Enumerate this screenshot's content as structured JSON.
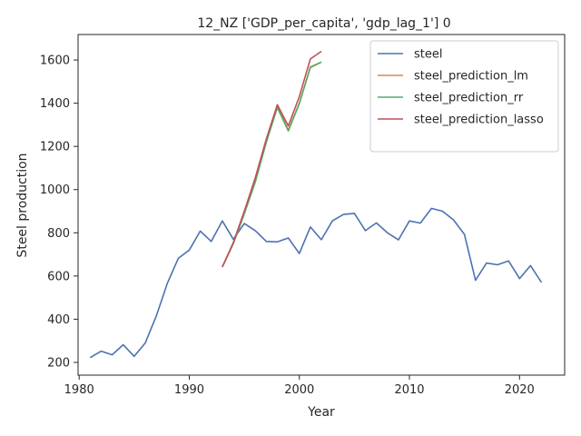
{
  "chart_data": {
    "type": "line",
    "title": "12_NZ ['GDP_per_capita', 'gdp_lag_1'] 0",
    "xlabel": "Year",
    "ylabel": "Steel production",
    "xlim": [
      1979.9,
      2024.1
    ],
    "ylim": [
      141,
      1718
    ],
    "xticks": [
      1980,
      1990,
      2000,
      2010,
      2020
    ],
    "yticks": [
      200,
      400,
      600,
      800,
      1000,
      1200,
      1400,
      1600
    ],
    "legend_position": "top-right",
    "grid": false,
    "series": [
      {
        "name": "steel",
        "color": "#4c72b0",
        "x": [
          1981,
          1982,
          1983,
          1984,
          1985,
          1986,
          1987,
          1988,
          1989,
          1990,
          1991,
          1992,
          1993,
          1994,
          1995,
          1996,
          1997,
          1998,
          1999,
          2000,
          2001,
          2002,
          2003,
          2004,
          2005,
          2006,
          2007,
          2008,
          2009,
          2010,
          2011,
          2012,
          2013,
          2014,
          2015,
          2016,
          2017,
          2018,
          2019,
          2020,
          2021,
          2022
        ],
        "y": [
          222,
          252,
          235,
          282,
          228,
          290,
          414,
          565,
          682,
          720,
          808,
          760,
          855,
          770,
          843,
          810,
          760,
          758,
          776,
          704,
          827,
          768,
          855,
          885,
          890,
          810,
          846,
          800,
          767,
          855,
          845,
          913,
          900,
          860,
          793,
          580,
          660,
          652,
          670,
          588,
          648,
          570
        ]
      },
      {
        "name": "steel_prediction_lm",
        "color": "#dd8452",
        "x": [
          1993,
          1994,
          1995,
          1996,
          1997,
          1998,
          1999,
          2000,
          2001,
          2002
        ],
        "y": [
          642,
          750,
          890,
          1040,
          1225,
          1385,
          1275,
          1400,
          1565,
          1590
        ]
      },
      {
        "name": "steel_prediction_rr",
        "color": "#55a868",
        "x": [
          1993,
          1994,
          1995,
          1996,
          1997,
          1998,
          1999,
          2000,
          2001,
          2002
        ],
        "y": [
          642,
          750,
          888,
          1035,
          1220,
          1380,
          1272,
          1398,
          1568,
          1590
        ]
      },
      {
        "name": "steel_prediction_lasso",
        "color": "#c44e52",
        "x": [
          1993,
          1994,
          1995,
          1996,
          1997,
          1998,
          1999,
          2000,
          2001,
          2002
        ],
        "y": [
          642,
          755,
          900,
          1055,
          1235,
          1393,
          1295,
          1430,
          1605,
          1640
        ]
      }
    ]
  }
}
